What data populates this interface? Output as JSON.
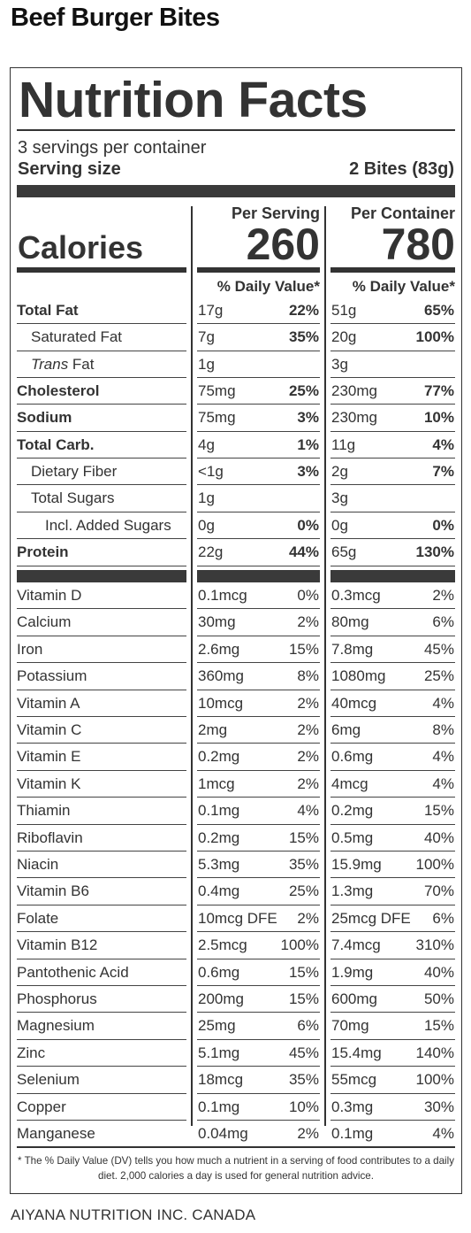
{
  "product": {
    "title": "Beef Burger Bites"
  },
  "label": {
    "title": "Nutrition Facts",
    "servings_per_container": "3 servings per container",
    "serving_size_label": "Serving size",
    "serving_size_value": "2 Bites (83g)",
    "calories_label": "Calories",
    "per_serving_head": "Per Serving",
    "per_container_head": "Per Container",
    "calories_per_serving": "260",
    "calories_per_container": "780",
    "dv_head": "% Daily Value*"
  },
  "nutrients": [
    {
      "name": "Total Fat",
      "style": "bold",
      "ps_amt": "17g",
      "ps_pct": "22%",
      "pc_amt": "51g",
      "pc_pct": "65%"
    },
    {
      "name": "Saturated Fat",
      "style": "indent1",
      "ps_amt": "7g",
      "ps_pct": "35%",
      "pc_amt": "20g",
      "pc_pct": "100%"
    },
    {
      "name": "Trans Fat",
      "style": "trans",
      "ps_amt": "1g",
      "ps_pct": "",
      "pc_amt": "3g",
      "pc_pct": ""
    },
    {
      "name": "Cholesterol",
      "style": "bold",
      "ps_amt": "75mg",
      "ps_pct": "25%",
      "pc_amt": "230mg",
      "pc_pct": "77%"
    },
    {
      "name": "Sodium",
      "style": "bold",
      "ps_amt": "75mg",
      "ps_pct": "3%",
      "pc_amt": "230mg",
      "pc_pct": "10%"
    },
    {
      "name": "Total Carb.",
      "style": "bold",
      "ps_amt": "4g",
      "ps_pct": "1%",
      "pc_amt": "11g",
      "pc_pct": "4%"
    },
    {
      "name": "Dietary Fiber",
      "style": "indent1",
      "ps_amt": "<1g",
      "ps_pct": "3%",
      "pc_amt": "2g",
      "pc_pct": "7%"
    },
    {
      "name": "Total Sugars",
      "style": "indent1",
      "ps_amt": "1g",
      "ps_pct": "",
      "pc_amt": "3g",
      "pc_pct": ""
    },
    {
      "name": "Incl. Added Sugars",
      "style": "indent2",
      "ps_amt": "0g",
      "ps_pct": "0%",
      "pc_amt": "0g",
      "pc_pct": "0%"
    },
    {
      "name": "Protein",
      "style": "bold",
      "ps_amt": "22g",
      "ps_pct": "44%",
      "pc_amt": "65g",
      "pc_pct": "130%"
    }
  ],
  "vitamins": [
    {
      "name": "Vitamin D",
      "ps_amt": "0.1mcg",
      "ps_pct": "0%",
      "pc_amt": "0.3mcg",
      "pc_pct": "2%"
    },
    {
      "name": "Calcium",
      "ps_amt": "30mg",
      "ps_pct": "2%",
      "pc_amt": "80mg",
      "pc_pct": "6%"
    },
    {
      "name": "Iron",
      "ps_amt": "2.6mg",
      "ps_pct": "15%",
      "pc_amt": "7.8mg",
      "pc_pct": "45%"
    },
    {
      "name": "Potassium",
      "ps_amt": "360mg",
      "ps_pct": "8%",
      "pc_amt": "1080mg",
      "pc_pct": "25%"
    },
    {
      "name": "Vitamin A",
      "ps_amt": "10mcg",
      "ps_pct": "2%",
      "pc_amt": "40mcg",
      "pc_pct": "4%"
    },
    {
      "name": "Vitamin C",
      "ps_amt": "2mg",
      "ps_pct": "2%",
      "pc_amt": "6mg",
      "pc_pct": "8%"
    },
    {
      "name": "Vitamin E",
      "ps_amt": "0.2mg",
      "ps_pct": "2%",
      "pc_amt": "0.6mg",
      "pc_pct": "4%"
    },
    {
      "name": "Vitamin K",
      "ps_amt": "1mcg",
      "ps_pct": "2%",
      "pc_amt": "4mcg",
      "pc_pct": "4%"
    },
    {
      "name": "Thiamin",
      "ps_amt": "0.1mg",
      "ps_pct": "4%",
      "pc_amt": "0.2mg",
      "pc_pct": "15%"
    },
    {
      "name": "Riboflavin",
      "ps_amt": "0.2mg",
      "ps_pct": "15%",
      "pc_amt": "0.5mg",
      "pc_pct": "40%"
    },
    {
      "name": "Niacin",
      "ps_amt": "5.3mg",
      "ps_pct": "35%",
      "pc_amt": "15.9mg",
      "pc_pct": "100%"
    },
    {
      "name": "Vitamin B6",
      "ps_amt": "0.4mg",
      "ps_pct": "25%",
      "pc_amt": "1.3mg",
      "pc_pct": "70%"
    },
    {
      "name": "Folate",
      "ps_amt": "10mcg DFE",
      "ps_pct": "2%",
      "pc_amt": "25mcg DFE",
      "pc_pct": "6%"
    },
    {
      "name": "Vitamin B12",
      "ps_amt": "2.5mcg",
      "ps_pct": "100%",
      "pc_amt": "7.4mcg",
      "pc_pct": "310%"
    },
    {
      "name": "Pantothenic Acid",
      "ps_amt": "0.6mg",
      "ps_pct": "15%",
      "pc_amt": "1.9mg",
      "pc_pct": "40%"
    },
    {
      "name": "Phosphorus",
      "ps_amt": "200mg",
      "ps_pct": "15%",
      "pc_amt": "600mg",
      "pc_pct": "50%"
    },
    {
      "name": "Magnesium",
      "ps_amt": "25mg",
      "ps_pct": "6%",
      "pc_amt": "70mg",
      "pc_pct": "15%"
    },
    {
      "name": "Zinc",
      "ps_amt": "5.1mg",
      "ps_pct": "45%",
      "pc_amt": "15.4mg",
      "pc_pct": "140%"
    },
    {
      "name": "Selenium",
      "ps_amt": "18mcg",
      "ps_pct": "35%",
      "pc_amt": "55mcg",
      "pc_pct": "100%"
    },
    {
      "name": "Copper",
      "ps_amt": "0.1mg",
      "ps_pct": "10%",
      "pc_amt": "0.3mg",
      "pc_pct": "30%"
    },
    {
      "name": "Manganese",
      "ps_amt": "0.04mg",
      "ps_pct": "2%",
      "pc_amt": "0.1mg",
      "pc_pct": "4%"
    }
  ],
  "footnote": "* The % Daily Value (DV) tells you how much a nutrient in a serving of food contributes to a daily diet. 2,000 calories a day is used for general nutrition advice.",
  "company": "AIYANA NUTRITION INC.  CANADA"
}
